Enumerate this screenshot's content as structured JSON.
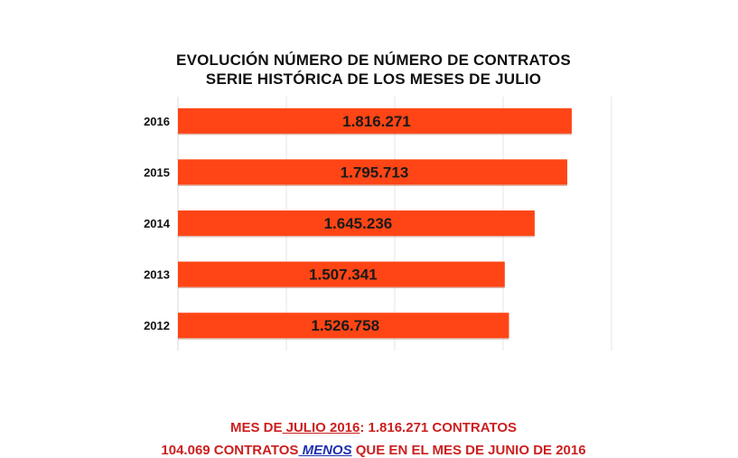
{
  "chart_data": {
    "type": "bar",
    "orientation": "horizontal",
    "title": "EVOLUCIÓN NÚMERO DE NÚMERO DE CONTRATOS",
    "subtitle": "SERIE HISTÓRICA DE LOS MESES DE JULIO",
    "categories": [
      "2016",
      "2015",
      "2014",
      "2013",
      "2012"
    ],
    "values": [
      1816271,
      1795713,
      1645236,
      1507341,
      1526758
    ],
    "data_labels": [
      "1.816.271",
      "1.795.713",
      "1.645.236",
      "1.507.341",
      "1.526.758"
    ],
    "xlim": [
      0,
      2000000
    ],
    "grid": "vertical",
    "bar_color": "#ff4515",
    "legend": "none"
  },
  "footer": {
    "line1_prefix": "MES DE",
    "line1_month": " JULIO 2016",
    "line1_suffix": ": 1.816.271 CONTRATOS",
    "line2_prefix": "104.069 CONTRATOS",
    "line2_emph": " MENOS",
    "line2_suffix": " QUE EN EL MES DE JUNIO DE 2016"
  }
}
